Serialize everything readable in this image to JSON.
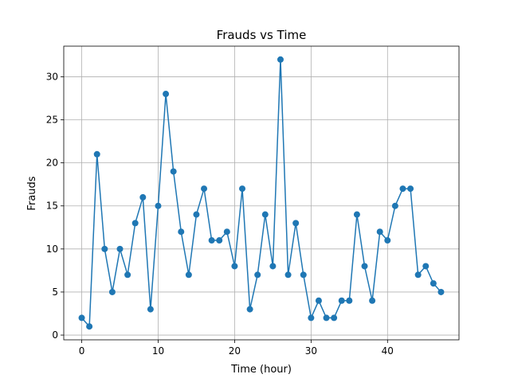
{
  "chart_data": {
    "type": "line",
    "title": "Frauds vs Time",
    "xlabel": "Time (hour)",
    "ylabel": "Frauds",
    "xlim": [
      -2.35,
      49.35
    ],
    "ylim": [
      -0.55,
      33.55
    ],
    "xticks": [
      0,
      10,
      20,
      30,
      40
    ],
    "yticks": [
      0,
      5,
      10,
      15,
      20,
      25,
      30
    ],
    "grid": true,
    "marker": "circle",
    "color": "#1f77b4",
    "series": [
      {
        "x": [
          0,
          1,
          2,
          3,
          4,
          5,
          6,
          7,
          8,
          9,
          10,
          11,
          12,
          13,
          14,
          15,
          16,
          17,
          18,
          19,
          20,
          21,
          22,
          23,
          24,
          25,
          26,
          27,
          28,
          29,
          30,
          31,
          32,
          33,
          34,
          35,
          36,
          37,
          38,
          39,
          40,
          41,
          42,
          43,
          44,
          45,
          46,
          47
        ],
        "values": [
          2,
          1,
          21,
          10,
          5,
          10,
          7,
          13,
          16,
          3,
          15,
          28,
          19,
          12,
          7,
          14,
          17,
          11,
          11,
          12,
          8,
          17,
          3,
          7,
          14,
          8,
          32,
          7,
          13,
          7,
          2,
          4,
          2,
          2,
          4,
          4,
          14,
          8,
          4,
          12,
          11,
          15,
          17,
          17,
          7,
          8,
          6,
          5
        ]
      }
    ]
  }
}
